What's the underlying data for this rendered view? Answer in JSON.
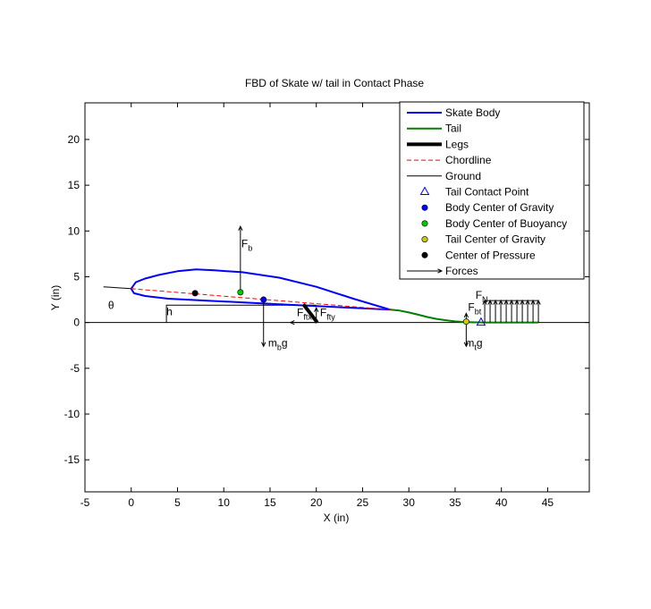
{
  "chart_data": {
    "type": "line",
    "title": "FBD of Skate w/ tail in Contact Phase",
    "xlabel": "X (in)",
    "ylabel": "Y (in)",
    "xlim": [
      -5,
      49.5
    ],
    "ylim": [
      -18.5,
      24
    ],
    "xticks": [
      -5,
      0,
      5,
      10,
      15,
      20,
      25,
      30,
      35,
      40,
      45
    ],
    "yticks": [
      -15,
      -10,
      -5,
      0,
      5,
      10,
      15,
      20
    ],
    "grid": false,
    "legend_position": "top-right",
    "legend": [
      {
        "label": "Skate Body",
        "color": "#0000ff",
        "kind": "line"
      },
      {
        "label": "Tail",
        "color": "#008000",
        "kind": "line"
      },
      {
        "label": "Legs",
        "color": "#000000",
        "kind": "thick-line"
      },
      {
        "label": "Chordline",
        "color": "#ff0000",
        "kind": "dashed-line"
      },
      {
        "label": "Ground",
        "color": "#000000",
        "kind": "thin-line"
      },
      {
        "label": "Tail Contact Point",
        "color": "#0000ff",
        "kind": "triangle"
      },
      {
        "label": "Body Center of Gravity",
        "color": "#0000ff",
        "kind": "dot"
      },
      {
        "label": "Body Center of Buoyancy",
        "color": "#00cc00",
        "kind": "dot"
      },
      {
        "label": "Tail Center of Gravity",
        "color": "#cccc00",
        "kind": "dot"
      },
      {
        "label": "Center of Pressure",
        "color": "#000000",
        "kind": "dot"
      },
      {
        "label": "Forces",
        "color": "#000000",
        "kind": "arrow"
      }
    ],
    "series": [
      {
        "name": "Skate Body",
        "color": "#0000ff",
        "x": [
          28.0,
          24.0,
          20.0,
          16.0,
          12.0,
          9.0,
          7.0,
          5.0,
          3.0,
          1.5,
          0.5,
          0.0,
          0.3,
          1.5,
          4.0,
          8.0,
          12.0,
          16.0,
          20.0,
          24.0,
          28.0
        ],
        "y": [
          1.4,
          2.6,
          3.9,
          4.9,
          5.5,
          5.7,
          5.8,
          5.6,
          5.2,
          4.8,
          4.4,
          3.7,
          3.2,
          2.9,
          2.6,
          2.4,
          2.2,
          2.0,
          1.8,
          1.6,
          1.4
        ]
      },
      {
        "name": "Tail",
        "color": "#008000",
        "x": [
          28.0,
          29.0,
          30.0,
          31.0,
          32.0,
          33.0,
          34.0,
          35.0,
          36.0,
          38.0,
          40.0,
          42.0,
          44.0
        ],
        "y": [
          1.4,
          1.3,
          1.1,
          0.85,
          0.6,
          0.4,
          0.25,
          0.12,
          0.05,
          0.0,
          0.0,
          0.0,
          0.0
        ]
      },
      {
        "name": "Legs",
        "color": "#000000",
        "x": [
          18.6,
          20.1
        ],
        "y": [
          2.0,
          0.0
        ]
      },
      {
        "name": "Chordline",
        "color": "#ff0000",
        "x": [
          0.0,
          28.0
        ],
        "y": [
          3.7,
          1.4
        ]
      },
      {
        "name": "Ground",
        "color": "#000000",
        "x": [
          -5,
          49.5
        ],
        "y": [
          0,
          0
        ]
      },
      {
        "name": "Reference Line",
        "color": "#000000",
        "x": [
          -3.0,
          0.0
        ],
        "y": [
          3.9,
          3.7
        ]
      },
      {
        "name": "Height Bracket",
        "color": "#000000",
        "x": [
          3.8,
          3.8,
          20.0
        ],
        "y": [
          0.0,
          1.9,
          1.9
        ]
      }
    ],
    "points": [
      {
        "name": "Tail Contact Point",
        "x": 37.8,
        "y": 0.0,
        "marker": "triangle",
        "color": "#0000ff"
      },
      {
        "name": "Body Center of Gravity",
        "x": 14.3,
        "y": 2.5,
        "marker": "dot",
        "color": "#0000ff"
      },
      {
        "name": "Body Center of Buoyancy",
        "x": 11.8,
        "y": 3.3,
        "marker": "dot",
        "color": "#00cc00"
      },
      {
        "name": "Tail Center of Gravity",
        "x": 36.2,
        "y": 0.1,
        "marker": "dot",
        "color": "#cccc00"
      },
      {
        "name": "Center of Pressure",
        "x": 6.9,
        "y": 3.2,
        "marker": "dot",
        "color": "#000000"
      }
    ],
    "forces": [
      {
        "x1": 11.8,
        "y1": 3.3,
        "x2": 11.8,
        "y2": 10.5
      },
      {
        "x1": 14.3,
        "y1": 2.5,
        "x2": 14.3,
        "y2": -2.6
      },
      {
        "x1": 36.2,
        "y1": 0.1,
        "x2": 36.2,
        "y2": -2.6
      },
      {
        "x1": 36.2,
        "y1": 0.1,
        "x2": 36.2,
        "y2": 1.0
      },
      {
        "x1": 20.0,
        "y1": 0.0,
        "x2": 20.0,
        "y2": 1.6
      },
      {
        "x1": 20.0,
        "y1": 0.0,
        "x2": 17.2,
        "y2": 0.0
      }
    ],
    "normal_load": {
      "x_start": 38.2,
      "x_end": 44.0,
      "count": 11,
      "height": 2.4
    },
    "annotations": [
      {
        "x": 11.9,
        "y": 8.2,
        "main": "F",
        "sub": "b"
      },
      {
        "x": 14.8,
        "y": -2.6,
        "main": "m",
        "sub": "b",
        "tail": "g"
      },
      {
        "x": 36.4,
        "y": 1.3,
        "main": "F",
        "sub": "bt"
      },
      {
        "x": 36.1,
        "y": -2.6,
        "main": "m",
        "sub": "t",
        "tail": "g"
      },
      {
        "x": 37.2,
        "y": 2.6,
        "main": "F",
        "sub": "N"
      },
      {
        "x": 17.9,
        "y": 0.7,
        "main": "F",
        "sub": "ftx"
      },
      {
        "x": 20.4,
        "y": 0.7,
        "main": "F",
        "sub": "fty"
      },
      {
        "x": 3.8,
        "y": 0.8,
        "main": "h"
      },
      {
        "x": -2.5,
        "y": 1.5,
        "main": "θ"
      }
    ]
  }
}
